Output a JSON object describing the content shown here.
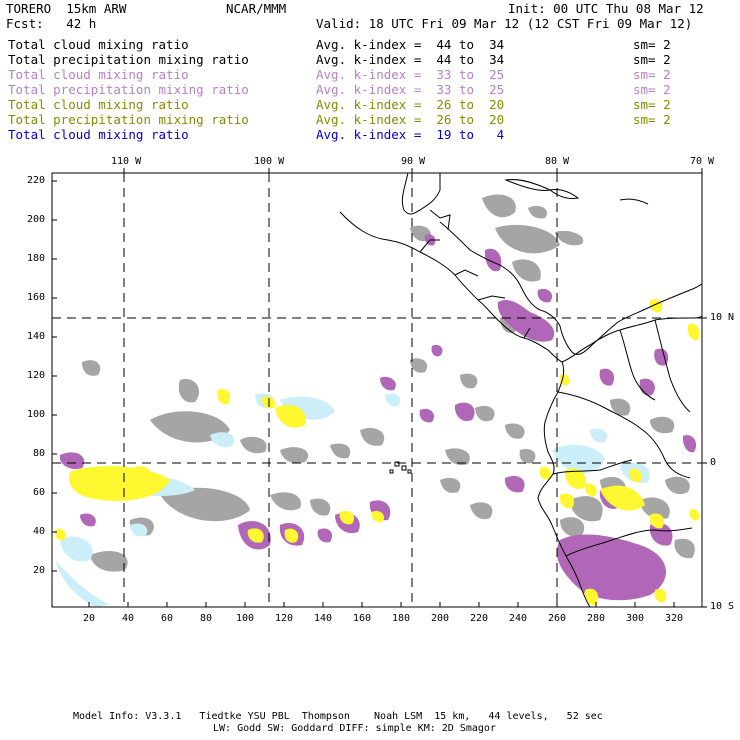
{
  "header": {
    "model": "TORERO  15km ARW",
    "org": "NCAR/MMM",
    "init": "Init: 00 UTC Thu 08 Mar 12",
    "fcst": "Fcst:   42 h",
    "valid": "Valid: 18 UTC Fri 09 Mar 12 (12 CST Fri 09 Mar 12)"
  },
  "legend": [
    {
      "field": "Total cloud mixing ratio",
      "kindex": "Avg. k-index =  44 to  34",
      "sm": "sm= 2",
      "color": "#000000"
    },
    {
      "field": "Total precipitation mixing ratio",
      "kindex": "Avg. k-index =  44 to  34",
      "sm": "sm= 2",
      "color": "#000000"
    },
    {
      "field": "Total cloud mixing ratio",
      "kindex": "Avg. k-index =  33 to  25",
      "sm": "sm= 2",
      "color": "#b77fc9"
    },
    {
      "field": "Total precipitation mixing ratio",
      "kindex": "Avg. k-index =  33 to  25",
      "sm": "sm= 2",
      "color": "#b77fc9"
    },
    {
      "field": "Total cloud mixing ratio",
      "kindex": "Avg. k-index =  26 to  20",
      "sm": "sm= 2",
      "color": "#8a8a00"
    },
    {
      "field": "Total precipitation mixing ratio",
      "kindex": "Avg. k-index =  26 to  20",
      "sm": "sm= 2",
      "color": "#8a8a00"
    },
    {
      "field": "Total cloud mixing ratio",
      "kindex": "Avg. k-index =  19 to   4",
      "sm": "",
      "color": "#0000cc"
    }
  ],
  "map": {
    "lon_labels": [
      "110 W",
      "100 W",
      "90 W",
      "80 W",
      "70 W"
    ],
    "lat_labels": [
      "10 N",
      "0",
      "10 S"
    ],
    "y_ticks": [
      "220",
      "200",
      "180",
      "160",
      "140",
      "120",
      "100",
      "80",
      "60",
      "40",
      "20"
    ],
    "x_ticks": [
      "20",
      "40",
      "60",
      "80",
      "100",
      "120",
      "140",
      "160",
      "180",
      "200",
      "220",
      "240",
      "260",
      "280",
      "300",
      "320"
    ],
    "colors": {
      "gray": "#a5a5a5",
      "purple": "#b067b8",
      "yellow": "#fff730",
      "cyan": "#cceef8"
    }
  },
  "footer": {
    "line1": "Model Info: V3.3.1   Tiedtke YSU PBL  Thompson    Noah LSM  15 km,   44 levels,   52 sec",
    "line2": "LW: Godd SW: Goddard DIFF: simple KM: 2D Smagor"
  }
}
